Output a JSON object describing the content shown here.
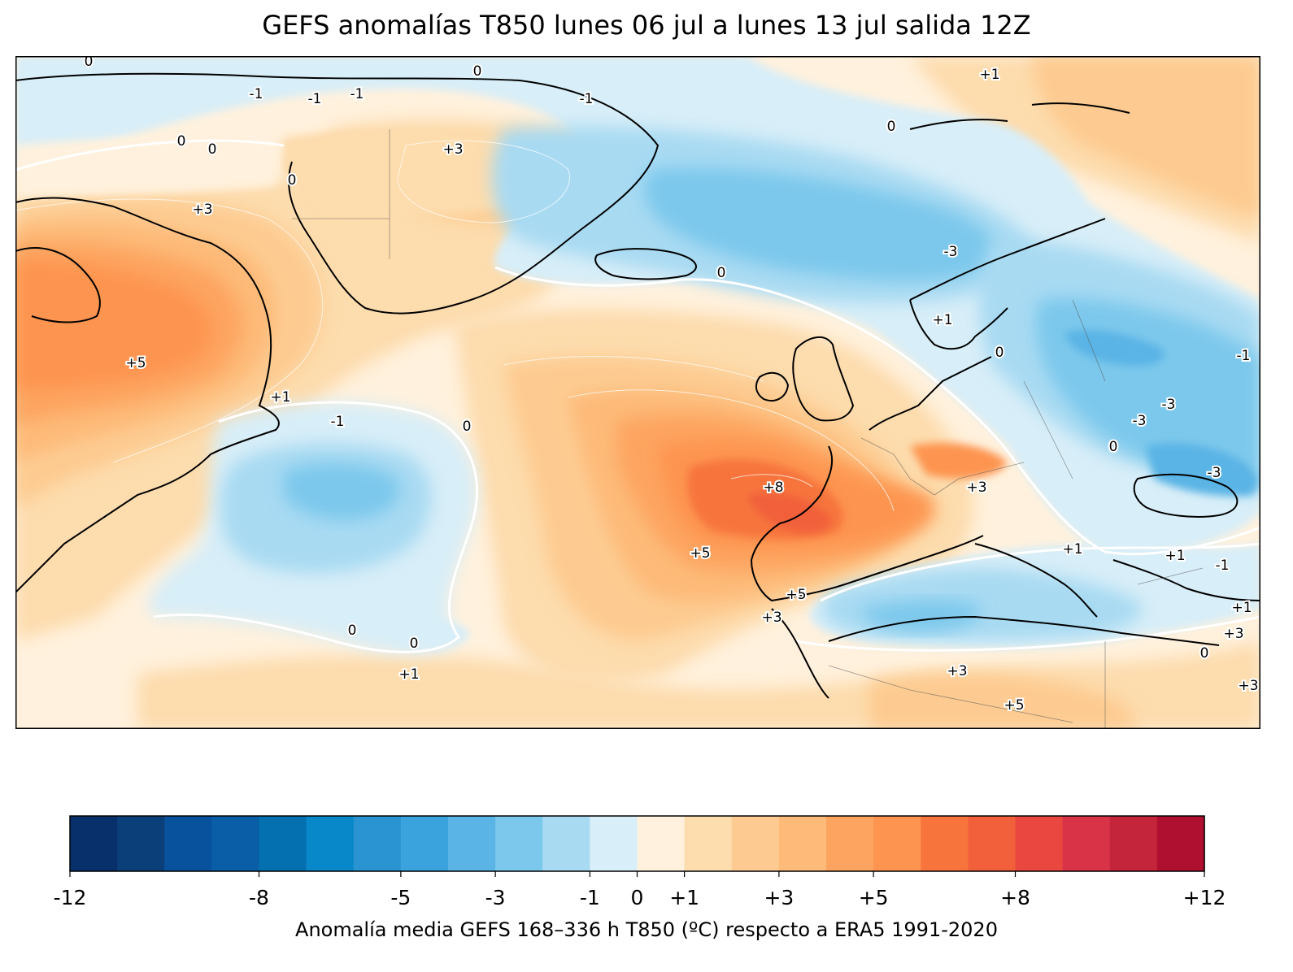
{
  "title": "GEFS anomalías T850 lunes 06 jul a lunes 13 jul salida 12Z",
  "colorbar": {
    "label": "Anomalía media GEFS 168–336 h T850 (ºC) respecto a ERA5 1991-2020",
    "range": [
      -12,
      12
    ],
    "tick_labels": [
      {
        "value": -12,
        "text": "-12"
      },
      {
        "value": -8,
        "text": "-8"
      },
      {
        "value": -5,
        "text": "-5"
      },
      {
        "value": -3,
        "text": "-3"
      },
      {
        "value": -1,
        "text": "-1"
      },
      {
        "value": 0,
        "text": "0"
      },
      {
        "value": 1,
        "text": "+1"
      },
      {
        "value": 3,
        "text": "+3"
      },
      {
        "value": 5,
        "text": "+5"
      },
      {
        "value": 8,
        "text": "+8"
      },
      {
        "value": 12,
        "text": "+12"
      }
    ],
    "colors": [
      "#08306b",
      "#0b3f7a",
      "#08519c",
      "#0a5ea8",
      "#0570b0",
      "#0887c9",
      "#2a94d3",
      "#3aa3de",
      "#5ab4e5",
      "#7cc8ec",
      "#a8daf2",
      "#d8eef8",
      "#fff1dd",
      "#fddcad",
      "#fdcb91",
      "#fdba78",
      "#fda460",
      "#fd9450",
      "#f7743d",
      "#f1603b",
      "#e94740",
      "#d93348",
      "#c4253b",
      "#b0102f"
    ]
  },
  "map": {
    "contour_labels": [
      {
        "text": "0"
      },
      {
        "text": "0"
      },
      {
        "text": "+1"
      },
      {
        "text": "-1"
      },
      {
        "text": "-1"
      },
      {
        "text": "-1"
      },
      {
        "text": "-1"
      },
      {
        "text": "0"
      },
      {
        "text": "0"
      },
      {
        "text": "0"
      },
      {
        "text": "+3"
      },
      {
        "text": "0"
      },
      {
        "text": "+3"
      },
      {
        "text": "0"
      },
      {
        "text": "-3"
      },
      {
        "text": "+1"
      },
      {
        "text": "0"
      },
      {
        "text": "+5"
      },
      {
        "text": "+1"
      },
      {
        "text": "-1"
      },
      {
        "text": "0"
      },
      {
        "text": "+8"
      },
      {
        "text": "+5"
      },
      {
        "text": "+3"
      },
      {
        "text": "+5"
      },
      {
        "text": "+3"
      },
      {
        "text": "0"
      },
      {
        "text": "0"
      },
      {
        "text": "+1"
      },
      {
        "text": "+3"
      },
      {
        "text": "+5"
      },
      {
        "text": "-1"
      },
      {
        "text": "-3"
      },
      {
        "text": "-3"
      },
      {
        "text": "0"
      },
      {
        "text": "-3"
      },
      {
        "text": "+1"
      },
      {
        "text": "+1"
      },
      {
        "text": "-1"
      },
      {
        "text": "+1"
      },
      {
        "text": "+3"
      },
      {
        "text": "0"
      },
      {
        "text": "+3"
      }
    ]
  }
}
